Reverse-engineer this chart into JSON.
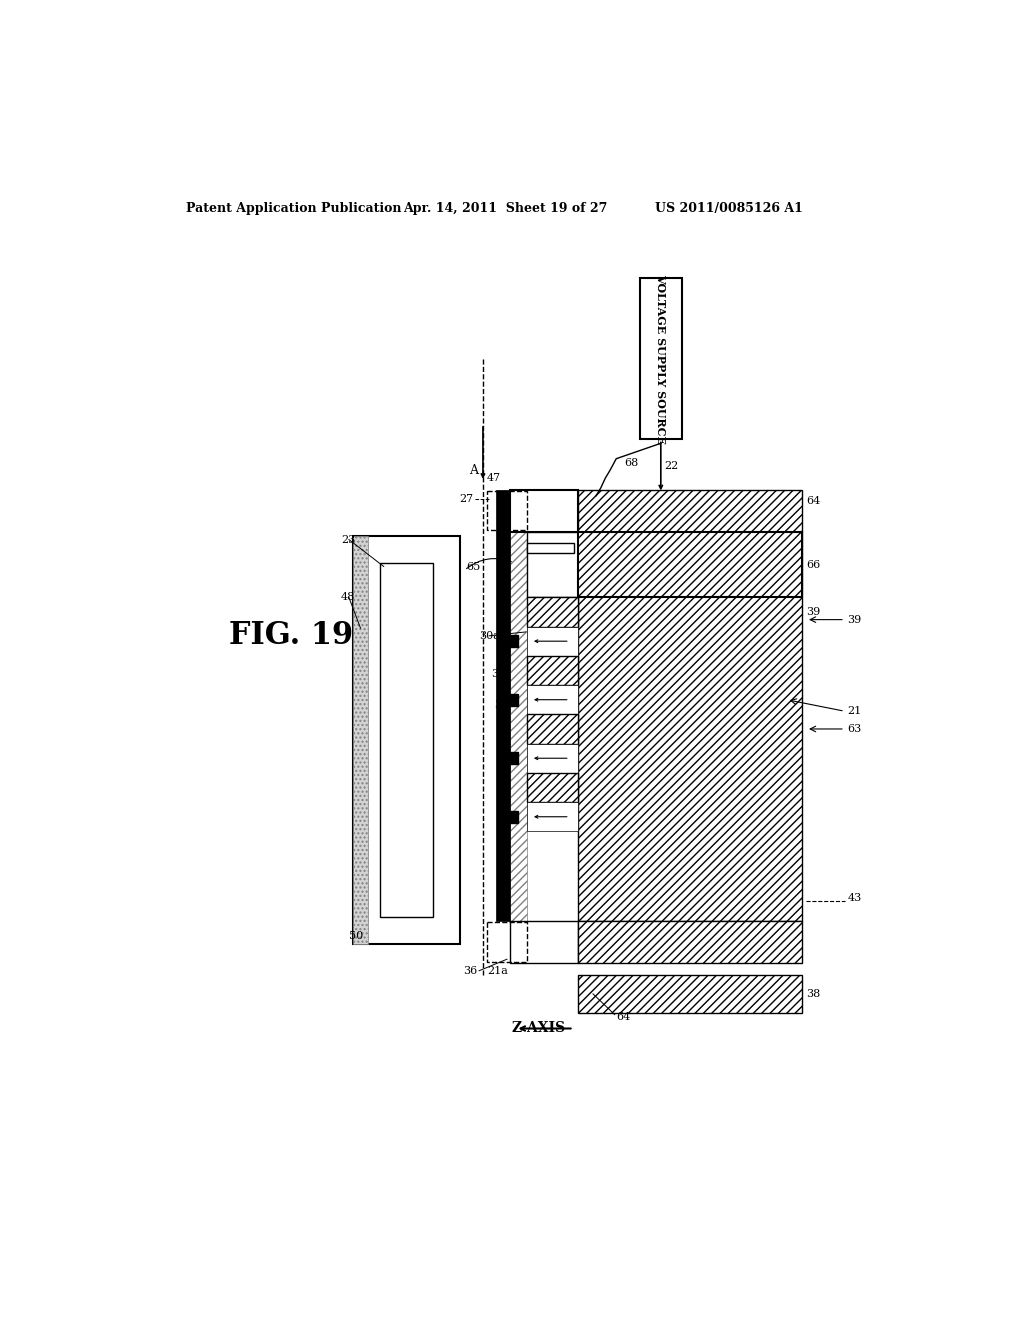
{
  "bg_color": "#ffffff",
  "header_left": "Patent Application Publication",
  "header_mid": "Apr. 14, 2011  Sheet 19 of 27",
  "header_right": "US 2011/0085126 A1",
  "fig_label": "FIG. 19"
}
